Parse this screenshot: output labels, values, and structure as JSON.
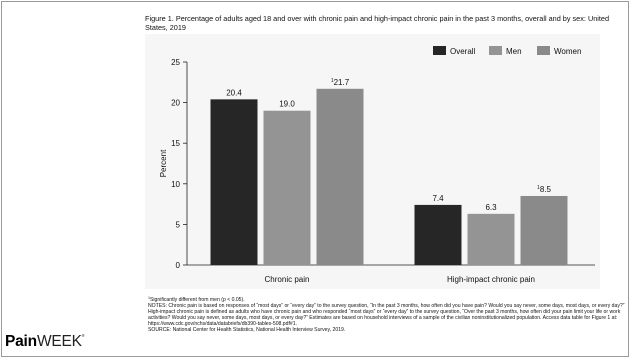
{
  "figure_title": "Figure 1. Percentage of adults aged 18 and over with chronic pain and high-impact chronic pain in the past 3 months, overall and by sex: United States, 2019",
  "colors": {
    "Overall": "#262626",
    "Men": "#949494",
    "Women": "#8a8a8a",
    "panel": "#f6f6f6",
    "axis": "#222222"
  },
  "chart_data": {
    "type": "bar",
    "title": "",
    "xlabel": "",
    "ylabel": "Percent",
    "ylim": [
      0,
      25
    ],
    "yticks": [
      0,
      5,
      10,
      15,
      20,
      25
    ],
    "grid": false,
    "legend_position": "top-right",
    "categories": [
      "Chronic pain",
      "High-impact chronic pain"
    ],
    "series": [
      {
        "name": "Overall",
        "values": [
          20.4,
          7.4
        ],
        "labels": [
          "20.4",
          "7.4"
        ]
      },
      {
        "name": "Men",
        "values": [
          19.0,
          6.3
        ],
        "labels": [
          "19.0",
          "6.3"
        ]
      },
      {
        "name": "Women",
        "values": [
          21.7,
          8.5
        ],
        "labels": [
          "21.7",
          "8.5"
        ],
        "label_prefix": [
          "1",
          "1"
        ]
      }
    ]
  },
  "notes": {
    "footnote_marker": "1",
    "footnote": "Significantly different from men (p < 0.05).",
    "notes_text": "NOTES: Chronic pain is based on responses of “most days” or “every day” to the survey question, “In the past 3 months, how often did you have pain? Would you say never, some days, most days, or every day?” High-impact chronic pain is defined as adults who have chronic pain and who responded “most days” or “every day” to the survey question, “Over the past 3 months, how often did your pain limit your life or work activities? Would you say never, some days, most days, or every day?” Estimates are based on household interviews of a sample of the civilian noninstitutionalized population. Access data table for Figure 1 at: https://www.cdc.gov/nchs/data/databriefs/db390-tables-508.pdf#1.",
    "source": "SOURCE: National Center for Health Statistics, National Health Interview Survey, 2019."
  },
  "logo": {
    "part1": "Pain",
    "part2": "WEEK",
    "mark": "®"
  }
}
